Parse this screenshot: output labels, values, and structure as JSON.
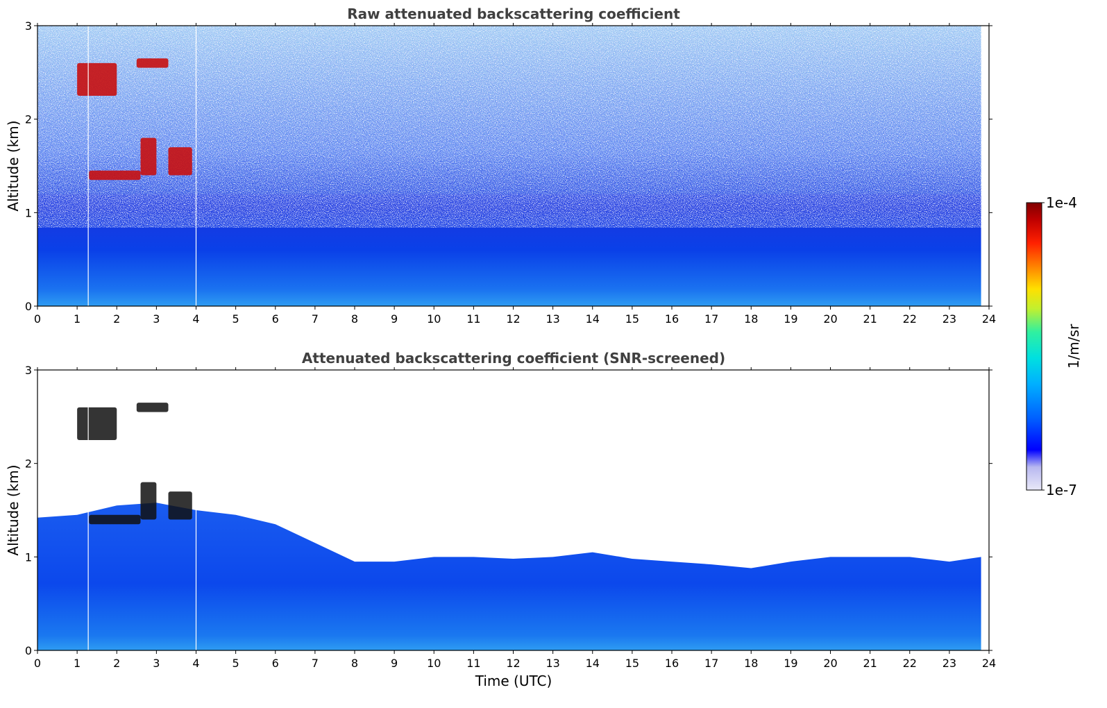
{
  "chart_data": [
    {
      "type": "heatmap",
      "title": "Raw attenuated backscattering coefficient",
      "ylabel": "Altitude (km)",
      "xlabel": "",
      "xlim": [
        0,
        24
      ],
      "ylim": [
        0,
        3
      ],
      "x_ticks": [
        "0",
        "1",
        "2",
        "3",
        "4",
        "5",
        "6",
        "7",
        "8",
        "9",
        "10",
        "11",
        "12",
        "13",
        "14",
        "15",
        "16",
        "17",
        "18",
        "19",
        "20",
        "21",
        "22",
        "23",
        "24"
      ],
      "y_ticks": [
        "0",
        "1",
        "2",
        "3"
      ],
      "data_end_hour": 23.8,
      "gap_lines_hours": [
        1.28,
        4.0
      ],
      "features": [
        {
          "kind": "boundary_layer_aerosol",
          "x_start": 0,
          "x_end": 23.8,
          "top_km": 0.8,
          "level": "low"
        },
        {
          "kind": "cloud",
          "x_start": 1.3,
          "x_end": 2.6,
          "base_km": 1.35,
          "top_km": 1.45,
          "level": "high"
        },
        {
          "kind": "cloud",
          "x_start": 2.6,
          "x_end": 3.0,
          "base_km": 1.4,
          "top_km": 1.8,
          "level": "high"
        },
        {
          "kind": "cloud",
          "x_start": 3.3,
          "x_end": 3.9,
          "base_km": 1.4,
          "top_km": 1.7,
          "level": "high"
        },
        {
          "kind": "cloud",
          "x_start": 1.0,
          "x_end": 2.0,
          "base_km": 2.25,
          "top_km": 2.6,
          "level": "high"
        },
        {
          "kind": "cloud",
          "x_start": 2.5,
          "x_end": 3.3,
          "base_km": 2.55,
          "top_km": 2.65,
          "level": "high"
        }
      ]
    },
    {
      "type": "heatmap",
      "title": "Attenuated backscattering coefficient (SNR-screened)",
      "ylabel": "Altitude (km)",
      "xlabel": "Time (UTC)",
      "xlim": [
        0,
        24
      ],
      "ylim": [
        0,
        3
      ],
      "x_ticks": [
        "0",
        "1",
        "2",
        "3",
        "4",
        "5",
        "6",
        "7",
        "8",
        "9",
        "10",
        "11",
        "12",
        "13",
        "14",
        "15",
        "16",
        "17",
        "18",
        "19",
        "20",
        "21",
        "22",
        "23",
        "24"
      ],
      "y_ticks": [
        "0",
        "1",
        "2",
        "3"
      ],
      "data_end_hour": 23.8,
      "gap_lines_hours": [
        1.28,
        4.0
      ],
      "boundary_layer_top_km": [
        [
          0,
          1.42
        ],
        [
          1,
          1.45
        ],
        [
          2,
          1.55
        ],
        [
          3,
          1.58
        ],
        [
          4,
          1.5
        ],
        [
          5,
          1.45
        ],
        [
          6,
          1.35
        ],
        [
          7,
          1.15
        ],
        [
          8,
          0.95
        ],
        [
          9,
          0.95
        ],
        [
          10,
          1.0
        ],
        [
          11,
          1.0
        ],
        [
          12,
          0.98
        ],
        [
          13,
          1.0
        ],
        [
          14,
          1.05
        ],
        [
          15,
          0.98
        ],
        [
          16,
          0.95
        ],
        [
          17,
          0.92
        ],
        [
          18,
          0.88
        ],
        [
          19,
          0.95
        ],
        [
          20,
          1.0
        ],
        [
          21,
          1.0
        ],
        [
          22,
          1.0
        ],
        [
          23,
          0.95
        ],
        [
          23.8,
          1.0
        ]
      ]
    }
  ],
  "colorbar": {
    "label": "1/m/sr",
    "max_label": "1e-4",
    "min_label": "1e-7",
    "scale": "log",
    "range": [
      1e-07,
      0.0001
    ],
    "colormap": "jet",
    "colors": [
      "#e8e8f8",
      "#b8b8f0",
      "#0000ff",
      "#0060ff",
      "#00b0ff",
      "#00e0e0",
      "#30f0a0",
      "#c0f030",
      "#ffe000",
      "#ff8000",
      "#ff2000",
      "#c00000",
      "#800000"
    ]
  }
}
